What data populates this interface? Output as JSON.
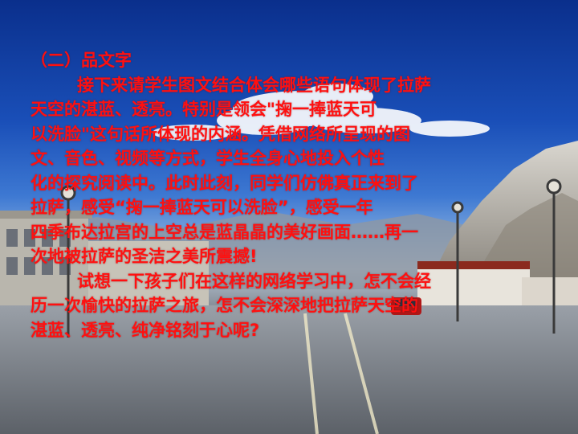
{
  "slide": {
    "heading": "（二）品文字",
    "paragraph1_lines": [
      "接下来请学生图文结合体会哪些语句体现了拉萨",
      "天空的湛蓝、透亮。特别是领会\"掬一捧蓝天可",
      "以洗脸\"这句话所体现的内涵。凭借网络所呈现的图",
      "文、音色、视频等方式，学生全身心地投入个性",
      "化的探究阅读中。此时此刻，同学们仿佛真正来到了",
      "拉萨，感受“掬一捧蓝天可以洗脸”，感受一年",
      "四季布达拉宫的上空总是蓝晶晶的美好画面……再一",
      "次地被拉萨的圣洁之美所震撼!"
    ],
    "paragraph2_lines": [
      "试想一下孩子们在这样的网络学习中，怎不会经",
      "历一次愉快的拉萨之旅，怎不会深深地把拉萨天空的",
      "湛蓝、透亮、纯净铭刻于心呢?"
    ]
  },
  "colors": {
    "text": "#ff1010",
    "sky_top": "#0a2f8c",
    "road": "#6f747b"
  }
}
